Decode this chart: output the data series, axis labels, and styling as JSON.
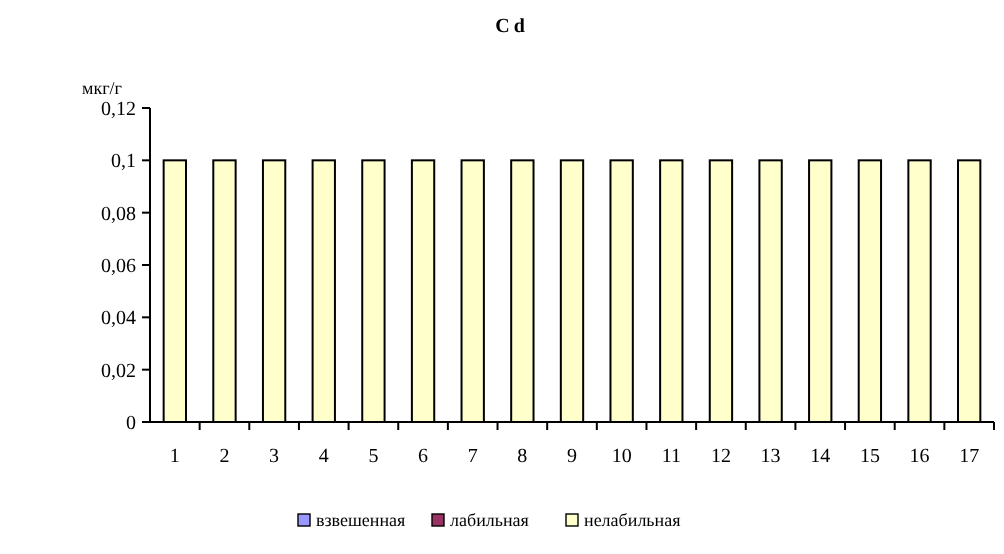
{
  "chart_data": {
    "type": "bar",
    "title": "Cd",
    "ylabel": "мкг/г",
    "stacked": true,
    "legend": "bottom",
    "grid": false,
    "categories": [
      "1",
      "2",
      "3",
      "4",
      "5",
      "6",
      "7",
      "8",
      "9",
      "10",
      "11",
      "12",
      "13",
      "14",
      "15",
      "16",
      "17"
    ],
    "series": [
      {
        "name": "взвешенная",
        "color": "#9999ff",
        "values": [
          0,
          0,
          0,
          0,
          0,
          0,
          0,
          0,
          0,
          0,
          0,
          0,
          0,
          0,
          0,
          0,
          0
        ]
      },
      {
        "name": "лабильная",
        "color": "#993366",
        "values": [
          0,
          0,
          0,
          0,
          0,
          0,
          0,
          0,
          0,
          0,
          0,
          0,
          0,
          0,
          0,
          0,
          0
        ]
      },
      {
        "name": "нелабильная",
        "color": "#ffffcc",
        "values": [
          0.1,
          0.1,
          0.1,
          0.1,
          0.1,
          0.1,
          0.1,
          0.1,
          0.1,
          0.1,
          0.1,
          0.1,
          0.1,
          0.1,
          0.1,
          0.1,
          0.1
        ]
      }
    ],
    "ylim": [
      0,
      0.12
    ],
    "yticks": [
      {
        "value": 0,
        "label": "0"
      },
      {
        "value": 0.02,
        "label": "0,02"
      },
      {
        "value": 0.04,
        "label": "0,04"
      },
      {
        "value": 0.06,
        "label": "0,06"
      },
      {
        "value": 0.08,
        "label": "0,08"
      },
      {
        "value": 0.1,
        "label": "0,1"
      },
      {
        "value": 0.12,
        "label": "0,12"
      }
    ]
  }
}
